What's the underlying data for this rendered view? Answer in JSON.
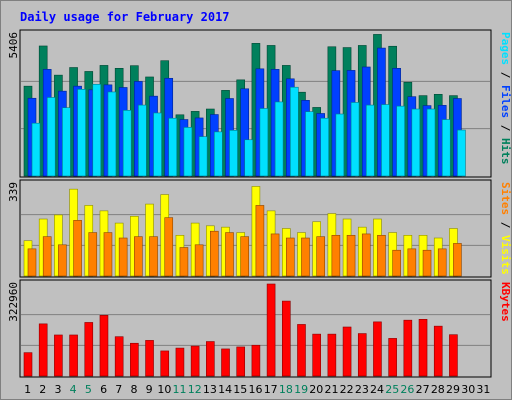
{
  "chart_data": {
    "type": "bar",
    "title": "Daily usage for February 2017",
    "x": [
      "1",
      "2",
      "3",
      "4",
      "5",
      "6",
      "7",
      "8",
      "9",
      "10",
      "11",
      "12",
      "13",
      "14",
      "15",
      "16",
      "17",
      "18",
      "19",
      "20",
      "21",
      "22",
      "23",
      "24",
      "25",
      "26",
      "27",
      "28",
      "29",
      "30",
      "31"
    ],
    "weekend_days": [
      "4",
      "5",
      "11",
      "12",
      "18",
      "19",
      "25",
      "26"
    ],
    "panels": [
      {
        "max_label": "5406",
        "ymax": 5406,
        "ylabel_parts": [
          "Pages",
          "Files",
          "Hits"
        ],
        "series": [
          {
            "name": "Hits",
            "color": "#00805c",
            "values": [
              3420,
              4950,
              3840,
              4130,
              3980,
              4210,
              4100,
              4200,
              3770,
              4390,
              2330,
              2460,
              2550,
              3260,
              3660,
              5050,
              4970,
              4210,
              3190,
              2610,
              4920,
              4890,
              4970,
              5390,
              4940,
              3570,
              3060,
              3110,
              3060,
              0,
              0
            ]
          },
          {
            "name": "Files",
            "color": "#0040ff",
            "values": [
              2960,
              4060,
              3230,
              3420,
              3280,
              3470,
              3370,
              3600,
              3040,
              3720,
              2150,
              2210,
              2340,
              2950,
              3320,
              4080,
              4060,
              3700,
              2880,
              2380,
              4010,
              4020,
              4150,
              4870,
              4100,
              3020,
              2680,
              2690,
              2950,
              0,
              0
            ]
          },
          {
            "name": "Pages",
            "color": "#00e0ff",
            "values": [
              2010,
              2990,
              2600,
              3300,
              3490,
              3200,
              2500,
              2700,
              2400,
              2200,
              1850,
              1500,
              1680,
              1740,
              1380,
              2570,
              2820,
              3380,
              2450,
              2200,
              2360,
              2800,
              2700,
              2720,
              2660,
              2550,
              2550,
              2150,
              1750,
              0,
              0
            ]
          }
        ]
      },
      {
        "max_label": "339",
        "ymax": 339,
        "ylabel_parts": [
          "Sites",
          "Visits"
        ],
        "series": [
          {
            "name": "Visits",
            "color": "#ffff00",
            "values": [
              130,
              210,
              225,
              320,
              260,
              240,
              195,
              220,
              265,
              300,
              150,
              195,
              185,
              180,
              160,
              330,
              240,
              175,
              160,
              200,
              230,
              210,
              180,
              210,
              160,
              150,
              150,
              140,
              175,
              0,
              0
            ]
          },
          {
            "name": "Sites",
            "color": "#ff8000",
            "values": [
              100,
              145,
              115,
              205,
              160,
              160,
              140,
              145,
              145,
              215,
              105,
              115,
              165,
              160,
              145,
              260,
              155,
              140,
              140,
              145,
              150,
              150,
              155,
              150,
              95,
              100,
              95,
              100,
              120,
              0,
              0
            ]
          }
        ]
      },
      {
        "max_label": "322960",
        "ymax": 322960,
        "ylabel_parts": [
          "KBytes"
        ],
        "series": [
          {
            "name": "KBytes",
            "color": "#ff0000",
            "values": [
              82000,
              183000,
              144000,
              144000,
              188000,
              213000,
              138000,
              115000,
              125000,
              88000,
              98000,
              105000,
              121000,
              95000,
              102000,
              108000,
              322960,
              263000,
              181000,
              147000,
              147000,
              172000,
              149000,
              190000,
              132000,
              196000,
              199000,
              175000,
              145000,
              0,
              0
            ]
          }
        ]
      }
    ]
  }
}
